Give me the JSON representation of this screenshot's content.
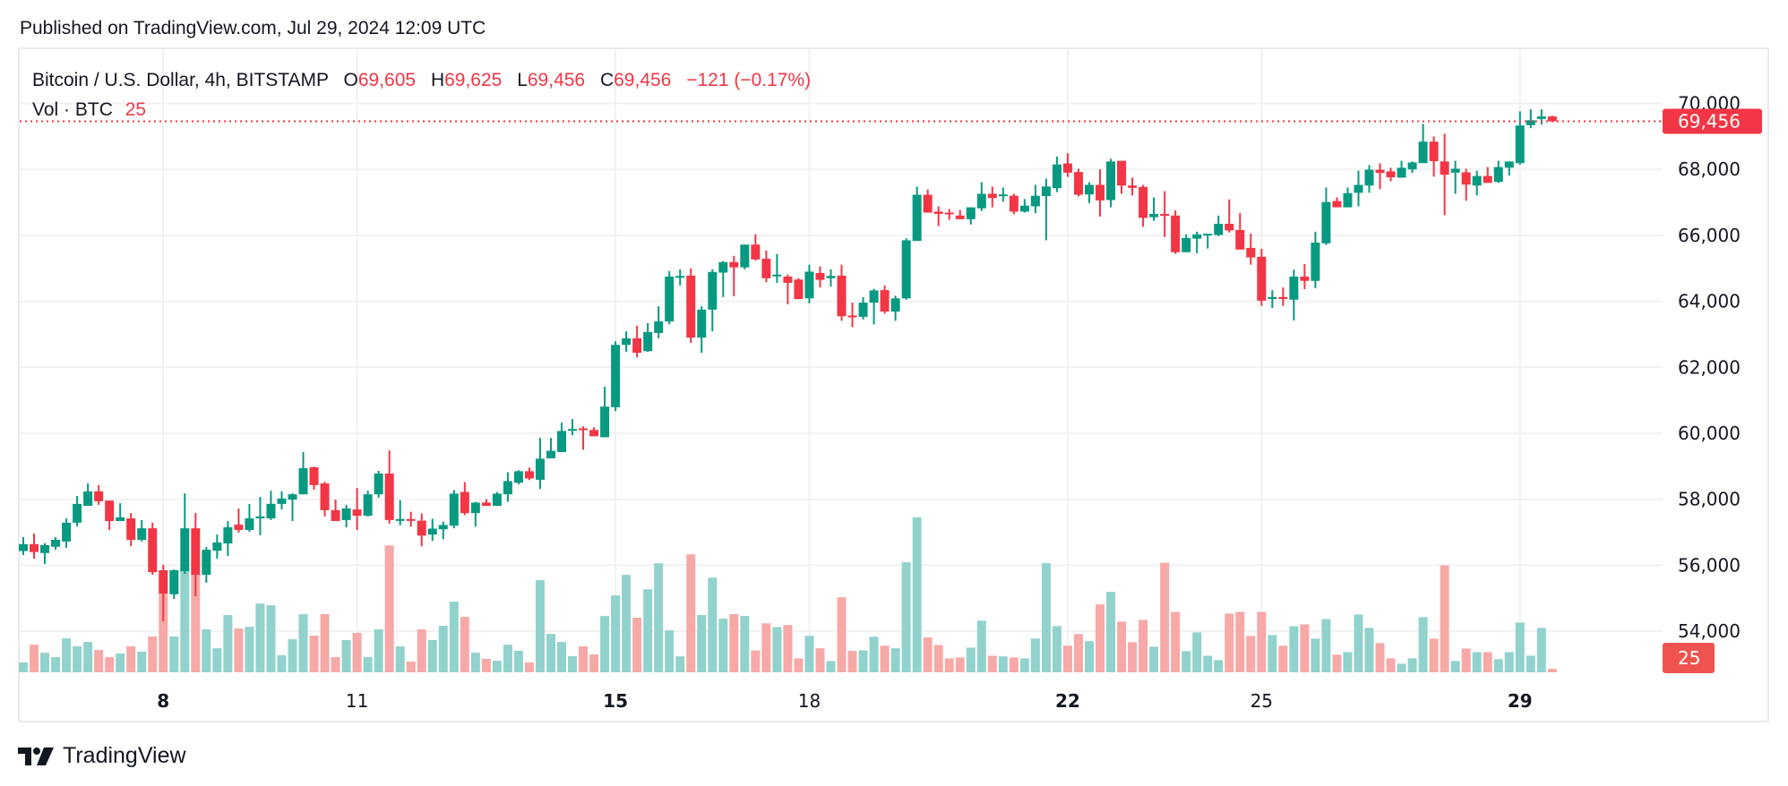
{
  "published": "Published on TradingView.com, Jul 29, 2024 12:09 UTC",
  "legend": {
    "symbol": "Bitcoin / U.S. Dollar, 4h, BITSTAMP",
    "o_label": "O",
    "o_value": "69,605",
    "h_label": "H",
    "h_value": "69,625",
    "l_label": "L",
    "l_value": "69,456",
    "c_label": "C",
    "c_value": "69,456",
    "change": "−121 (−0.17%)",
    "vol_label": "Vol · BTC",
    "vol_value": "25"
  },
  "logo": {
    "text": "TradingView"
  },
  "colors": {
    "up": "#089981",
    "down": "#F23645",
    "up_volume": "#92D2CC",
    "down_volume": "#F7A9A7",
    "grid": "#F0F1F3",
    "text": "#131722"
  },
  "chart_data": {
    "type": "candlestick",
    "interval": "4h",
    "ylim": [
      53000,
      70500
    ],
    "grid": true,
    "y_ticks": [
      "54,000",
      "56,000",
      "58,000",
      "60,000",
      "62,000",
      "64,000",
      "66,000",
      "68,000",
      "70,000"
    ],
    "y_tick_values": [
      54000,
      56000,
      58000,
      60000,
      62000,
      64000,
      66000,
      68000,
      70000
    ],
    "x_ticks": [
      {
        "label": "8",
        "t": "Jul 8 00:00",
        "bold": true
      },
      {
        "label": "11",
        "t": "Jul 11 00:00",
        "bold": false
      },
      {
        "label": "15",
        "t": "Jul 15 00:00",
        "bold": true
      },
      {
        "label": "18",
        "t": "Jul 18 00:00",
        "bold": false
      },
      {
        "label": "22",
        "t": "Jul 22 00:00",
        "bold": true
      },
      {
        "label": "25",
        "t": "Jul 25 00:00",
        "bold": false
      },
      {
        "label": "29",
        "t": "Jul 29 00:00",
        "bold": true
      }
    ],
    "last_price": 69456,
    "last_price_label": "69,456",
    "last_volume": 25,
    "last_volume_label": "25",
    "columns": [
      "open",
      "high",
      "low",
      "close",
      "volume_btc"
    ],
    "first_candle": "Jul 5 20:00",
    "candles": [
      [
        56430,
        56850,
        56310,
        56640,
        69
      ],
      [
        56640,
        56960,
        56200,
        56400,
        193
      ],
      [
        56370,
        56670,
        56040,
        56610,
        137
      ],
      [
        56560,
        56850,
        56470,
        56770,
        106
      ],
      [
        56720,
        57420,
        56530,
        57290,
        237
      ],
      [
        57290,
        58100,
        57180,
        57860,
        181
      ],
      [
        57800,
        58480,
        57800,
        58240,
        212
      ],
      [
        58240,
        58430,
        57830,
        57940,
        156
      ],
      [
        57960,
        57960,
        57070,
        57340,
        106
      ],
      [
        57340,
        57880,
        57340,
        57450,
        131
      ],
      [
        57420,
        57580,
        56580,
        56770,
        181
      ],
      [
        56770,
        57370,
        56720,
        57120,
        144
      ],
      [
        57120,
        57290,
        55710,
        55790,
        250
      ],
      [
        55850,
        56010,
        54300,
        55140,
        549
      ],
      [
        55120,
        55870,
        54980,
        55850,
        250
      ],
      [
        55820,
        58180,
        55740,
        57120,
        707
      ],
      [
        57120,
        57580,
        55060,
        55710,
        683
      ],
      [
        55710,
        56550,
        55470,
        56470,
        300
      ],
      [
        56440,
        56930,
        56200,
        56690,
        168
      ],
      [
        56660,
        57340,
        56280,
        57150,
        400
      ],
      [
        57230,
        57720,
        56990,
        57070,
        306
      ],
      [
        57070,
        57860,
        57010,
        57420,
        318
      ],
      [
        57420,
        58070,
        56910,
        57480,
        480
      ],
      [
        57420,
        58260,
        57370,
        57860,
        468
      ],
      [
        57860,
        58240,
        57690,
        58020,
        119
      ],
      [
        57990,
        58180,
        57340,
        58150,
        231
      ],
      [
        58150,
        59430,
        58150,
        58940,
        406
      ],
      [
        58970,
        58990,
        58290,
        58430,
        256
      ],
      [
        58480,
        58530,
        57480,
        57670,
        406
      ],
      [
        57670,
        57990,
        57340,
        57340,
        106
      ],
      [
        57370,
        57830,
        57150,
        57720,
        225
      ],
      [
        57690,
        58340,
        57070,
        57500,
        275
      ],
      [
        57500,
        58260,
        57480,
        58150,
        106
      ],
      [
        58150,
        58860,
        58050,
        58780,
        300
      ],
      [
        58780,
        59480,
        57260,
        57370,
        886
      ],
      [
        57380,
        57970,
        57210,
        57400,
        181
      ],
      [
        57400,
        57620,
        57170,
        57370,
        75
      ],
      [
        57350,
        57570,
        56570,
        56900,
        300
      ],
      [
        56930,
        57410,
        56740,
        57110,
        225
      ],
      [
        57090,
        57320,
        56790,
        57220,
        325
      ],
      [
        57200,
        58280,
        57120,
        58170,
        493
      ],
      [
        58220,
        58520,
        57520,
        57580,
        387
      ],
      [
        57580,
        57920,
        57170,
        57900,
        137
      ],
      [
        57900,
        58000,
        57800,
        57800,
        94
      ],
      [
        57800,
        58220,
        57800,
        58170,
        81
      ],
      [
        58150,
        58820,
        57920,
        58550,
        193
      ],
      [
        58500,
        58880,
        58450,
        58850,
        150
      ],
      [
        58850,
        58960,
        58580,
        58630,
        69
      ],
      [
        58590,
        59860,
        58310,
        59230,
        643
      ],
      [
        59240,
        59860,
        59240,
        59470,
        268
      ],
      [
        59430,
        60320,
        59430,
        60070,
        212
      ],
      [
        60090,
        60430,
        59940,
        60130,
        112
      ],
      [
        60150,
        60210,
        59500,
        60100,
        181
      ],
      [
        60100,
        60180,
        59910,
        59910,
        125
      ],
      [
        59880,
        61410,
        59880,
        60810,
        393
      ],
      [
        60790,
        62790,
        60670,
        62680,
        537
      ],
      [
        62680,
        63090,
        62470,
        62880,
        680
      ],
      [
        62880,
        63260,
        62300,
        62440,
        381
      ],
      [
        62490,
        63340,
        62470,
        63070,
        580
      ],
      [
        63040,
        63850,
        62880,
        63390,
        761
      ],
      [
        63390,
        64920,
        63310,
        64750,
        293
      ],
      [
        64760,
        64970,
        64480,
        64770,
        112
      ],
      [
        64780,
        65000,
        62740,
        62900,
        824
      ],
      [
        62900,
        63850,
        62440,
        63750,
        400
      ],
      [
        63750,
        64970,
        63090,
        64890,
        661
      ],
      [
        64870,
        65220,
        64130,
        65190,
        374
      ],
      [
        65190,
        65380,
        64150,
        65030,
        406
      ],
      [
        65030,
        65720,
        64970,
        65720,
        393
      ],
      [
        65720,
        66030,
        65240,
        65270,
        153
      ],
      [
        65290,
        65540,
        64580,
        64700,
        342
      ],
      [
        64780,
        65430,
        64560,
        64810,
        316
      ],
      [
        64750,
        64810,
        63910,
        64560,
        330
      ],
      [
        64660,
        64700,
        64070,
        64070,
        97
      ],
      [
        64090,
        65110,
        63940,
        64900,
        255
      ],
      [
        64860,
        65060,
        64420,
        64650,
        168
      ],
      [
        64700,
        64970,
        64450,
        64770,
        78
      ],
      [
        64780,
        65110,
        63410,
        63550,
        524
      ],
      [
        63570,
        63960,
        63220,
        63550,
        149
      ],
      [
        63530,
        64120,
        63450,
        63960,
        153
      ],
      [
        63960,
        64380,
        63300,
        64330,
        248
      ],
      [
        64340,
        64480,
        63630,
        63690,
        186
      ],
      [
        63690,
        64170,
        63410,
        64090,
        168
      ],
      [
        64090,
        65910,
        64050,
        65850,
        769
      ],
      [
        65830,
        67480,
        65830,
        67230,
        1083
      ],
      [
        67230,
        67390,
        66690,
        66690,
        243
      ],
      [
        66720,
        66880,
        66280,
        66650,
        191
      ],
      [
        66690,
        66800,
        66470,
        66660,
        97
      ],
      [
        66600,
        66770,
        66490,
        66490,
        104
      ],
      [
        66490,
        66850,
        66330,
        66850,
        172
      ],
      [
        66820,
        67610,
        66740,
        67260,
        361
      ],
      [
        67260,
        67480,
        66850,
        67130,
        116
      ],
      [
        67210,
        67450,
        67020,
        67240,
        111
      ],
      [
        67200,
        67260,
        66640,
        66720,
        104
      ],
      [
        66720,
        67100,
        66690,
        66900,
        97
      ],
      [
        66880,
        67530,
        66670,
        67200,
        236
      ],
      [
        67190,
        67720,
        65850,
        67480,
        762
      ],
      [
        67430,
        68390,
        67310,
        68150,
        323
      ],
      [
        68180,
        68490,
        67770,
        67900,
        186
      ],
      [
        67920,
        68020,
        67180,
        67230,
        267
      ],
      [
        67240,
        67610,
        66980,
        67530,
        217
      ],
      [
        67530,
        68000,
        66570,
        67060,
        474
      ],
      [
        67070,
        68320,
        66850,
        68240,
        562
      ],
      [
        68260,
        68260,
        67260,
        67510,
        354
      ],
      [
        67510,
        67750,
        67210,
        67440,
        210
      ],
      [
        67470,
        67530,
        66260,
        66530,
        366
      ],
      [
        66550,
        67150,
        66440,
        66650,
        179
      ],
      [
        66650,
        67340,
        65950,
        66590,
        765
      ],
      [
        66600,
        66760,
        65440,
        65490,
        422
      ],
      [
        65490,
        66030,
        65490,
        65920,
        148
      ],
      [
        65900,
        66110,
        65460,
        66030,
        279
      ],
      [
        66010,
        66050,
        65600,
        66050,
        116
      ],
      [
        66010,
        66600,
        65980,
        66350,
        85
      ],
      [
        66350,
        67090,
        66090,
        66150,
        410
      ],
      [
        66160,
        66680,
        65570,
        65570,
        422
      ],
      [
        65620,
        66050,
        65110,
        65330,
        254
      ],
      [
        65350,
        65590,
        63860,
        64020,
        422
      ],
      [
        64070,
        64340,
        63800,
        64130,
        260
      ],
      [
        64130,
        64420,
        63860,
        64070,
        185
      ],
      [
        64050,
        64960,
        63420,
        64750,
        322
      ],
      [
        64750,
        65130,
        64370,
        64620,
        335
      ],
      [
        64620,
        66110,
        64400,
        65780,
        235
      ],
      [
        65760,
        67450,
        65710,
        67010,
        372
      ],
      [
        67040,
        67150,
        66850,
        66850,
        123
      ],
      [
        66850,
        67450,
        66850,
        67280,
        141
      ],
      [
        67290,
        67960,
        66880,
        67530,
        404
      ],
      [
        67510,
        68130,
        67290,
        67990,
        310
      ],
      [
        67990,
        68180,
        67400,
        67890,
        204
      ],
      [
        67940,
        68050,
        67640,
        67760,
        98
      ],
      [
        67750,
        68260,
        67750,
        68050,
        60
      ],
      [
        68000,
        68240,
        67890,
        68210,
        98
      ],
      [
        68190,
        69380,
        68190,
        68840,
        385
      ],
      [
        68840,
        69000,
        67780,
        68250,
        235
      ],
      [
        68240,
        69080,
        66610,
        67840,
        747
      ],
      [
        67900,
        68260,
        67260,
        68020,
        79
      ],
      [
        67910,
        68020,
        67050,
        67540,
        166
      ],
      [
        67510,
        67960,
        67210,
        67800,
        141
      ],
      [
        67800,
        68070,
        67590,
        67590,
        141
      ],
      [
        67620,
        68260,
        67590,
        68070,
        92
      ],
      [
        68050,
        68240,
        67810,
        68240,
        141
      ],
      [
        68190,
        69760,
        68140,
        69330,
        347
      ],
      [
        69340,
        69820,
        69250,
        69490,
        116
      ],
      [
        69530,
        69820,
        69360,
        69605,
        310
      ],
      [
        69605,
        69625,
        69456,
        69456,
        25
      ]
    ]
  }
}
